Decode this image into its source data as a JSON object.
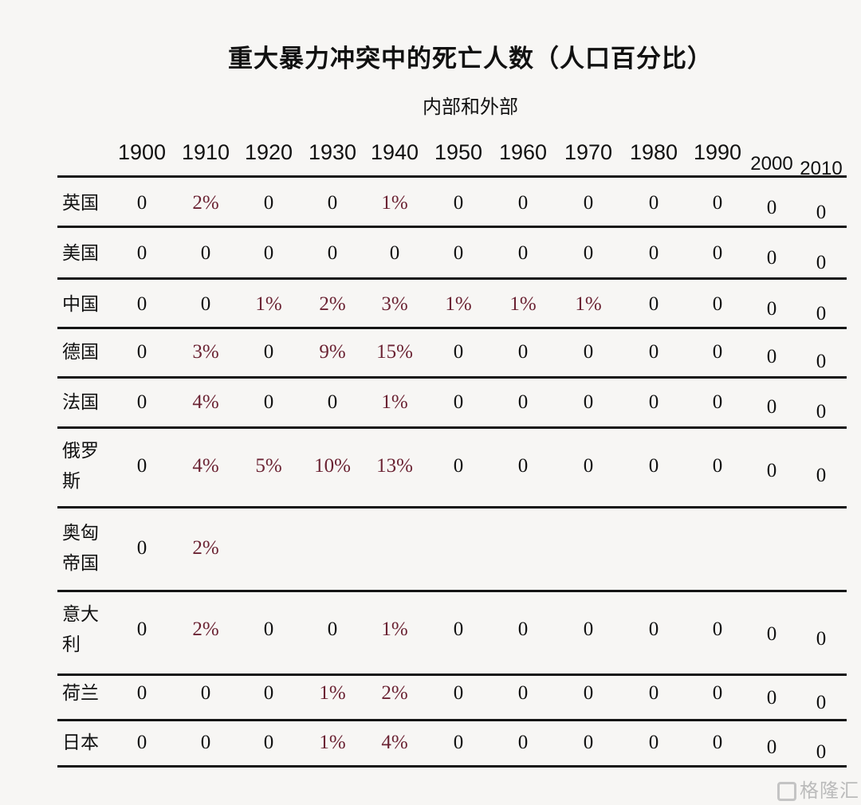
{
  "title": "重大暴力冲突中的死亡人数（人口百分比）",
  "subtitle": "内部和外部",
  "columns": [
    "1900",
    "1910",
    "1920",
    "1930",
    "1940",
    "1950",
    "1960",
    "1970",
    "1980",
    "1990",
    "2000",
    "2010"
  ],
  "rows": [
    {
      "label": "英国",
      "values": [
        "0",
        "2%",
        "0",
        "0",
        "1%",
        "0",
        "0",
        "0",
        "0",
        "0",
        "0",
        "0"
      ]
    },
    {
      "label": "美国",
      "values": [
        "0",
        "0",
        "0",
        "0",
        "0",
        "0",
        "0",
        "0",
        "0",
        "0",
        "0",
        "0"
      ]
    },
    {
      "label": "中国",
      "values": [
        "0",
        "0",
        "1%",
        "2%",
        "3%",
        "1%",
        "1%",
        "1%",
        "0",
        "0",
        "0",
        "0"
      ]
    },
    {
      "label": "德国",
      "values": [
        "0",
        "3%",
        "0",
        "9%",
        "15%",
        "0",
        "0",
        "0",
        "0",
        "0",
        "0",
        "0"
      ]
    },
    {
      "label": "法国",
      "values": [
        "0",
        "4%",
        "0",
        "0",
        "1%",
        "0",
        "0",
        "0",
        "0",
        "0",
        "0",
        "0"
      ]
    },
    {
      "label": "俄罗斯",
      "values": [
        "0",
        "4%",
        "5%",
        "10%",
        "13%",
        "0",
        "0",
        "0",
        "0",
        "0",
        "0",
        "0"
      ]
    },
    {
      "label": "奥匈帝国",
      "values": [
        "0",
        "2%",
        "",
        "",
        "",
        "",
        "",
        "",
        "",
        "",
        "",
        ""
      ]
    },
    {
      "label": "意大利",
      "values": [
        "0",
        "2%",
        "0",
        "0",
        "1%",
        "0",
        "0",
        "0",
        "0",
        "0",
        "0",
        "0"
      ]
    },
    {
      "label": "荷兰",
      "values": [
        "0",
        "0",
        "0",
        "1%",
        "2%",
        "0",
        "0",
        "0",
        "0",
        "0",
        "0",
        "0"
      ]
    },
    {
      "label": "日本",
      "values": [
        "0",
        "0",
        "0",
        "1%",
        "4%",
        "0",
        "0",
        "0",
        "0",
        "0",
        "0",
        "0"
      ]
    }
  ],
  "colors": {
    "percent_text": "#6b2333",
    "text": "#111111"
  },
  "watermark": {
    "text": "格隆汇",
    "icon": "gelonghui-logo-icon"
  }
}
